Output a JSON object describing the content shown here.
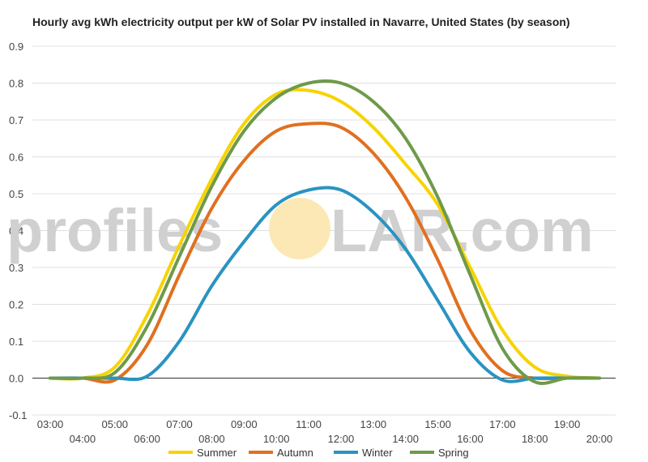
{
  "chart_data": {
    "type": "line",
    "title": "Hourly avg kWh electricity output per kW of Solar PV installed in Navarre, United States (by season)",
    "xlabel": "",
    "ylabel": "",
    "ylim": [
      -0.1,
      0.9
    ],
    "y_ticks": [
      "-0.1",
      "0.0",
      "0.1",
      "0.2",
      "0.3",
      "0.4",
      "0.5",
      "0.6",
      "0.7",
      "0.8",
      "0.9"
    ],
    "x": [
      "03:00",
      "04:00",
      "05:00",
      "06:00",
      "07:00",
      "08:00",
      "09:00",
      "10:00",
      "11:00",
      "12:00",
      "13:00",
      "14:00",
      "15:00",
      "16:00",
      "17:00",
      "18:00",
      "19:00",
      "20:00"
    ],
    "grid": true,
    "legend_position": "bottom",
    "series": [
      {
        "name": "Summer",
        "color": "#f7d300",
        "values": [
          0,
          0,
          0.03,
          0.17,
          0.36,
          0.54,
          0.69,
          0.77,
          0.78,
          0.75,
          0.68,
          0.58,
          0.47,
          0.3,
          0.13,
          0.03,
          0.005,
          0
        ]
      },
      {
        "name": "Autumn",
        "color": "#e07020",
        "values": [
          0,
          0,
          -0.005,
          0.09,
          0.28,
          0.46,
          0.59,
          0.67,
          0.69,
          0.68,
          0.61,
          0.49,
          0.32,
          0.13,
          0.02,
          0,
          0,
          0
        ]
      },
      {
        "name": "Winter",
        "color": "#2a93c2",
        "values": [
          0,
          0,
          0,
          0.005,
          0.1,
          0.25,
          0.37,
          0.47,
          0.51,
          0.51,
          0.45,
          0.35,
          0.21,
          0.07,
          -0.005,
          0,
          0,
          0
        ]
      },
      {
        "name": "Spring",
        "color": "#6e9a4a",
        "values": [
          0,
          0,
          0.015,
          0.14,
          0.33,
          0.52,
          0.67,
          0.76,
          0.8,
          0.8,
          0.75,
          0.65,
          0.49,
          0.28,
          0.08,
          -0.01,
          0,
          0
        ]
      }
    ]
  },
  "watermark": {
    "left": "profiles",
    "right": "LAR.com"
  }
}
